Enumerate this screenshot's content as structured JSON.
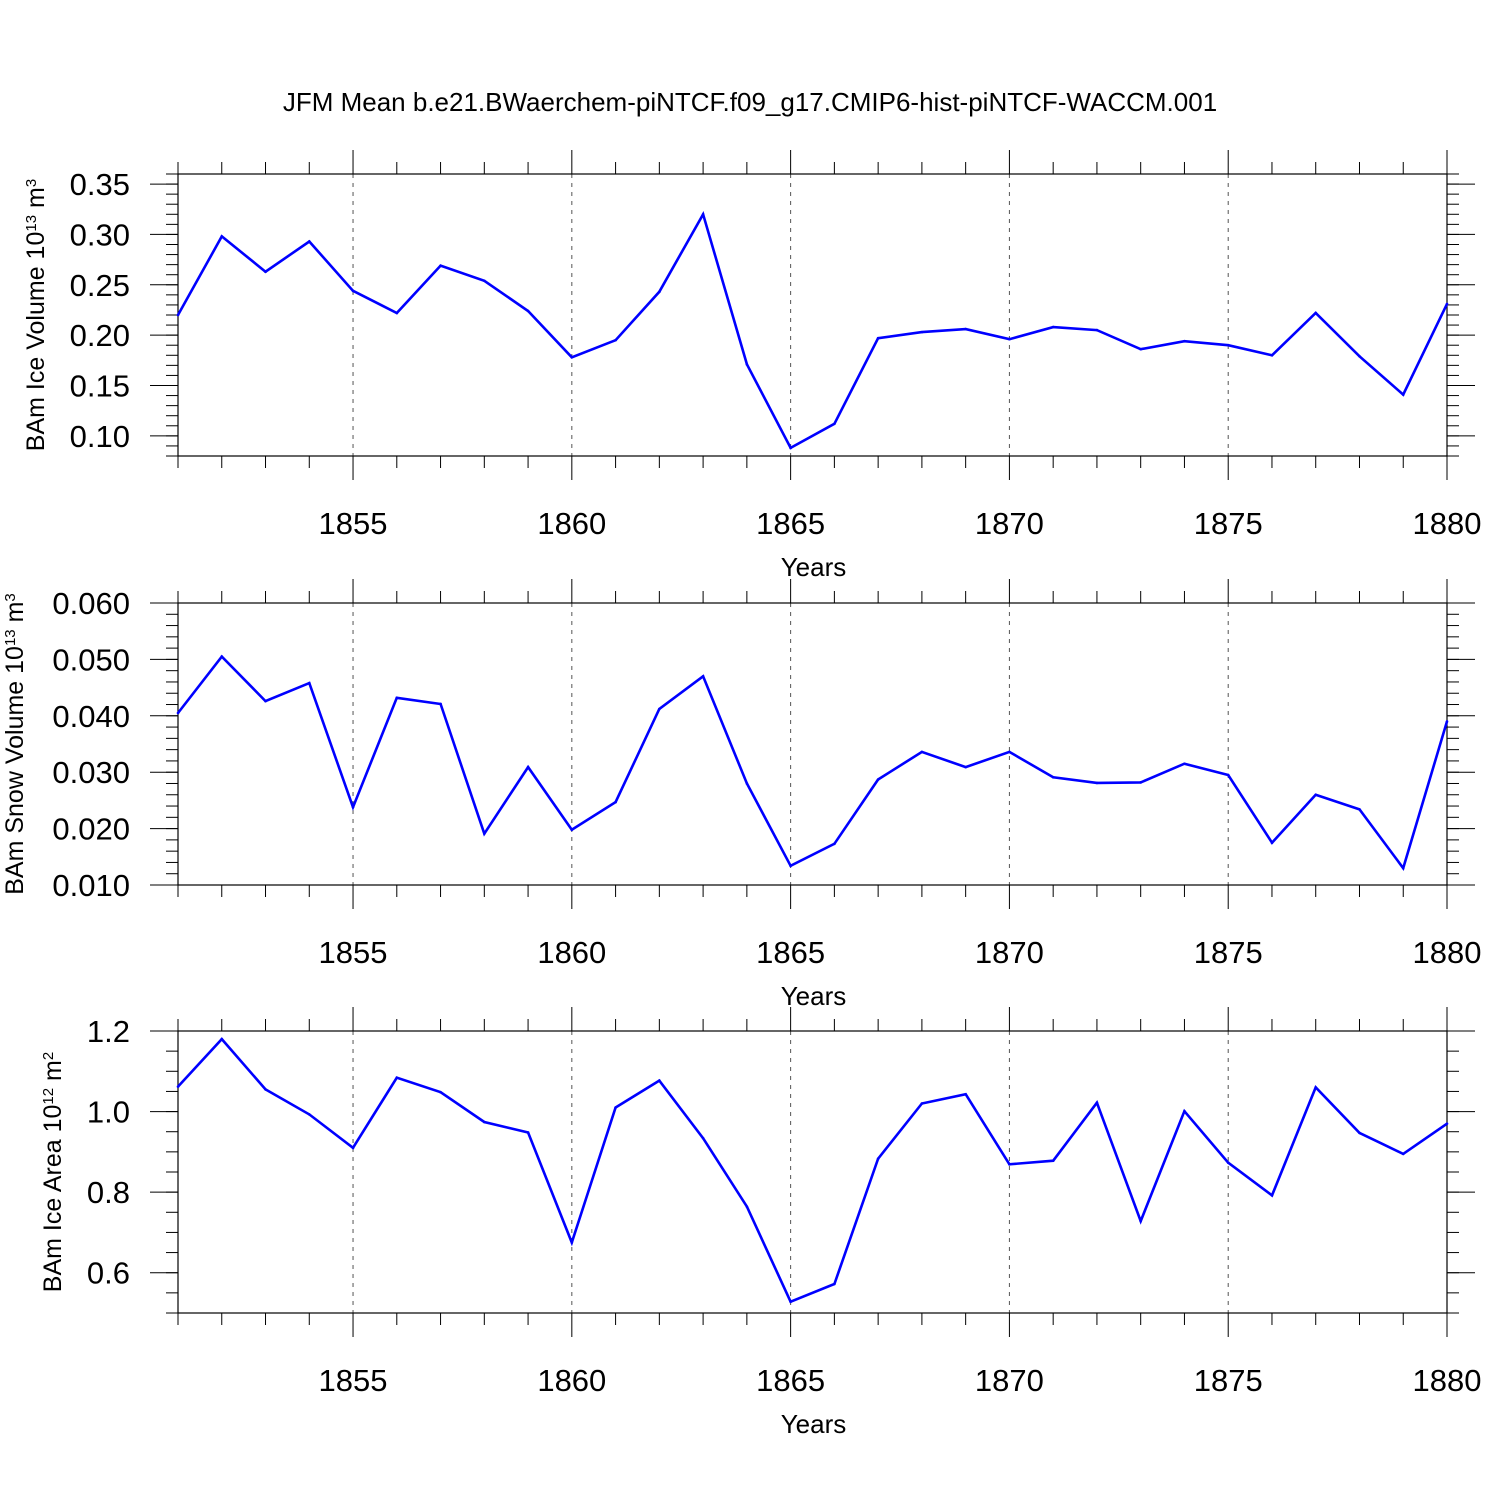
{
  "title": "JFM Mean b.e21.BWaerchem-piNTCF.f09_g17.CMIP6-hist-piNTCF-WACCM.001",
  "colors": {
    "line": "#0000ff",
    "axes": "#000000",
    "grid": "#555555"
  },
  "chart_data": [
    {
      "type": "line",
      "title": "JFM Mean b.e21.BWaerchem-piNTCF.f09_g17.CMIP6-hist-piNTCF-WACCM.001",
      "xlabel": "Years",
      "ylabel": {
        "main": "BAm Ice Volume 10",
        "exp": "13",
        "unit": " m",
        "unit_exp": "3"
      },
      "xlim": [
        1851,
        1880
      ],
      "ylim": [
        0.08,
        0.36
      ],
      "x_ticks": [
        1855,
        1860,
        1865,
        1870,
        1875,
        1880
      ],
      "y_ticks": [
        0.1,
        0.15,
        0.2,
        0.25,
        0.3,
        0.35
      ],
      "y_tick_labels": [
        "0.10",
        "0.15",
        "0.20",
        "0.25",
        "0.30",
        "0.35"
      ],
      "y_minor_step": 0.01,
      "grid": "vertical dashed at major x ticks",
      "x": [
        1851,
        1852,
        1853,
        1854,
        1855,
        1856,
        1857,
        1858,
        1859,
        1860,
        1861,
        1862,
        1863,
        1864,
        1865,
        1866,
        1867,
        1868,
        1869,
        1870,
        1871,
        1872,
        1873,
        1874,
        1875,
        1876,
        1877,
        1878,
        1879,
        1880
      ],
      "values": [
        0.22,
        0.298,
        0.263,
        0.293,
        0.244,
        0.222,
        0.269,
        0.254,
        0.224,
        0.178,
        0.195,
        0.243,
        0.32,
        0.171,
        0.088,
        0.112,
        0.197,
        0.203,
        0.206,
        0.196,
        0.208,
        0.205,
        0.186,
        0.194,
        0.19,
        0.18,
        0.222,
        0.179,
        0.141,
        0.231
      ]
    },
    {
      "type": "line",
      "xlabel": "Years",
      "ylabel": {
        "main": "BAm Snow Volume 10",
        "exp": "13",
        "unit": " m",
        "unit_exp": "3"
      },
      "xlim": [
        1851,
        1880
      ],
      "ylim": [
        0.01,
        0.06
      ],
      "x_ticks": [
        1855,
        1860,
        1865,
        1870,
        1875,
        1880
      ],
      "y_ticks": [
        0.01,
        0.02,
        0.03,
        0.04,
        0.05,
        0.06
      ],
      "y_tick_labels": [
        "0.010",
        "0.020",
        "0.030",
        "0.040",
        "0.050",
        "0.060"
      ],
      "y_minor_step": 0.002,
      "grid": "vertical dashed at major x ticks",
      "x": [
        1851,
        1852,
        1853,
        1854,
        1855,
        1856,
        1857,
        1858,
        1859,
        1860,
        1861,
        1862,
        1863,
        1864,
        1865,
        1866,
        1867,
        1868,
        1869,
        1870,
        1871,
        1872,
        1873,
        1874,
        1875,
        1876,
        1877,
        1878,
        1879,
        1880
      ],
      "values": [
        0.0405,
        0.0505,
        0.0426,
        0.0458,
        0.0238,
        0.0432,
        0.0421,
        0.0191,
        0.0309,
        0.0198,
        0.0247,
        0.0412,
        0.047,
        0.028,
        0.0134,
        0.0173,
        0.0287,
        0.0336,
        0.0309,
        0.0336,
        0.0291,
        0.0281,
        0.0282,
        0.0315,
        0.0295,
        0.0175,
        0.026,
        0.0234,
        0.013,
        0.039
      ]
    },
    {
      "type": "line",
      "xlabel": "Years",
      "ylabel": {
        "main": "BAm Ice Area 10",
        "exp": "12",
        "unit": " m",
        "unit_exp": "2"
      },
      "xlim": [
        1851,
        1880
      ],
      "ylim": [
        0.5,
        1.2
      ],
      "x_ticks": [
        1855,
        1860,
        1865,
        1870,
        1875,
        1880
      ],
      "y_ticks": [
        0.6,
        0.8,
        1.0,
        1.2
      ],
      "y_tick_labels": [
        "0.6",
        "0.8",
        "1.0",
        "1.2"
      ],
      "y_minor_step": 0.05,
      "grid": "vertical dashed at major x ticks",
      "x": [
        1851,
        1852,
        1853,
        1854,
        1855,
        1856,
        1857,
        1858,
        1859,
        1860,
        1861,
        1862,
        1863,
        1864,
        1865,
        1866,
        1867,
        1868,
        1869,
        1870,
        1871,
        1872,
        1873,
        1874,
        1875,
        1876,
        1877,
        1878,
        1879,
        1880
      ],
      "values": [
        1.062,
        1.18,
        1.055,
        0.993,
        0.91,
        1.084,
        1.048,
        0.974,
        0.948,
        0.675,
        1.01,
        1.077,
        0.934,
        0.764,
        0.528,
        0.572,
        0.883,
        1.02,
        1.043,
        0.869,
        0.878,
        1.022,
        0.728,
        1.001,
        0.873,
        0.792,
        1.06,
        0.947,
        0.895,
        0.97
      ]
    }
  ]
}
